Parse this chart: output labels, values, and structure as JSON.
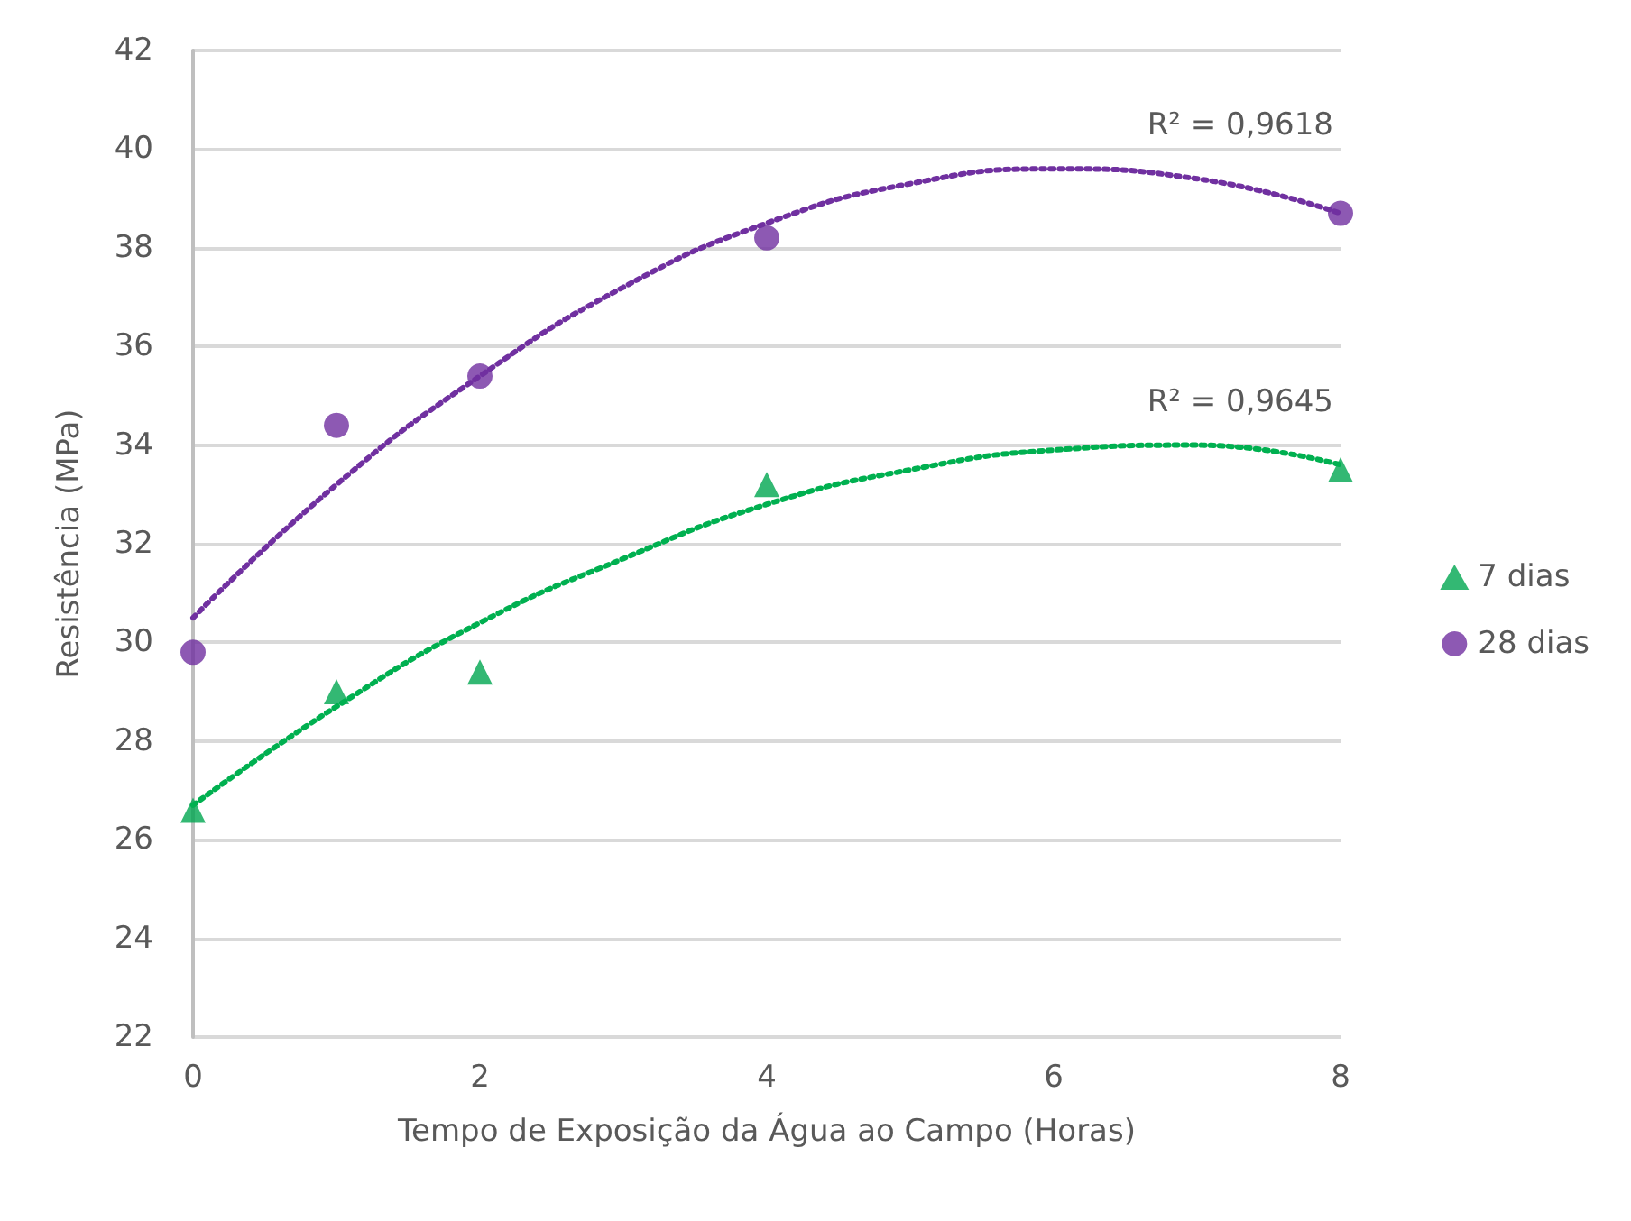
{
  "chart_data": {
    "type": "scatter",
    "xlabel": "Tempo de Exposição da Água ao Campo (Horas)",
    "ylabel": "Resistência (MPa)",
    "x": [
      0,
      1,
      2,
      4,
      8
    ],
    "series": [
      {
        "name": "7 dias",
        "color": "#00a650",
        "marker": "triangle",
        "values": [
          26.6,
          29.0,
          29.4,
          33.2,
          33.5
        ]
      },
      {
        "name": "28 dias",
        "color": "#7030a0",
        "marker": "circle",
        "values": [
          29.8,
          34.4,
          35.4,
          38.2,
          38.7
        ]
      },
      {
        "type": "line",
        "color": "#00b050",
        "line_style": "dotted",
        "marker": "none",
        "x": [
          0,
          1,
          2,
          3,
          4,
          5,
          6,
          7,
          8
        ],
        "values": [
          26.7,
          28.7,
          30.4,
          31.7,
          32.8,
          33.5,
          33.9,
          34.0,
          33.6
        ]
      },
      {
        "type": "line",
        "color": "#7030a0",
        "line_style": "dotted",
        "marker": "none",
        "x": [
          0,
          1,
          2,
          3,
          4,
          5,
          6,
          7,
          8
        ],
        "values": [
          30.5,
          33.2,
          35.4,
          37.2,
          38.5,
          39.3,
          39.6,
          39.4,
          38.7
        ]
      }
    ],
    "annotations": [
      "R² = 0,9618",
      "R² = 0,9645"
    ],
    "xlim": [
      0,
      8
    ],
    "xticks": [
      0,
      2,
      4,
      6,
      8
    ],
    "ylim": [
      22,
      42
    ],
    "yticks": [
      22,
      24,
      26,
      28,
      30,
      32,
      34,
      36,
      38,
      40,
      42
    ],
    "grid": "y",
    "legend": "right"
  }
}
